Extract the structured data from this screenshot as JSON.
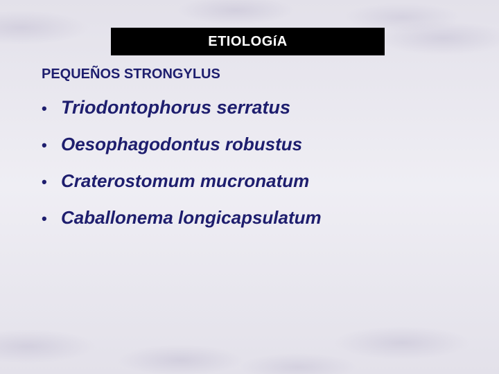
{
  "colors": {
    "title_box_bg": "#000000",
    "title_text": "#ffffff",
    "body_text": "#1e1e6e",
    "bullet_dot": "#1e1e6e"
  },
  "typography": {
    "title_fontsize": 20,
    "subtitle_fontsize": 20,
    "bullet_fontsize": 26,
    "bullet0_fontsize": 27,
    "dot_fontsize": 22
  },
  "title": "ETIOLOGíA",
  "subtitle": "PEQUEÑOS STRONGYLUS",
  "bullets": [
    {
      "text": "Triodontophorus serratus"
    },
    {
      "text": "Oesophagodontus robustus"
    },
    {
      "text": "Craterostomum mucronatum"
    },
    {
      "text": "Caballonema longicapsulatum"
    }
  ]
}
